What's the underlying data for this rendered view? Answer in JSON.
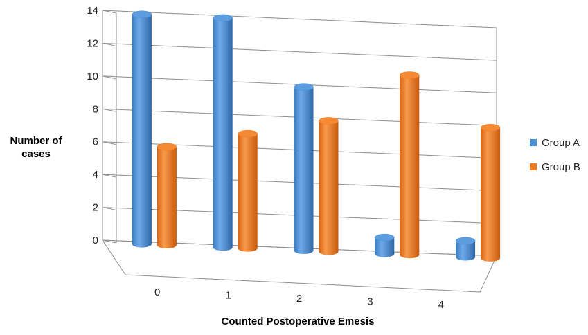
{
  "chart_data": {
    "type": "bar",
    "categories": [
      "0",
      "1",
      "2",
      "3",
      "4"
    ],
    "series": [
      {
        "name": "Group A",
        "values": [
          14,
          14,
          10,
          1,
          1
        ]
      },
      {
        "name": "Group B",
        "values": [
          6,
          7,
          8,
          11,
          8
        ]
      }
    ],
    "colors": {
      "Group A": "#4a90d9",
      "Group B": "#f07c22"
    },
    "title": "",
    "xlabel": "Counted Postoperative Emesis",
    "ylabel": "Number of cases",
    "ylim": [
      0,
      14
    ],
    "yticks": [
      "0",
      "2",
      "4",
      "6",
      "8",
      "10",
      "12",
      "14"
    ],
    "grid": true,
    "legend": "right",
    "style": "3d-cylinder"
  }
}
